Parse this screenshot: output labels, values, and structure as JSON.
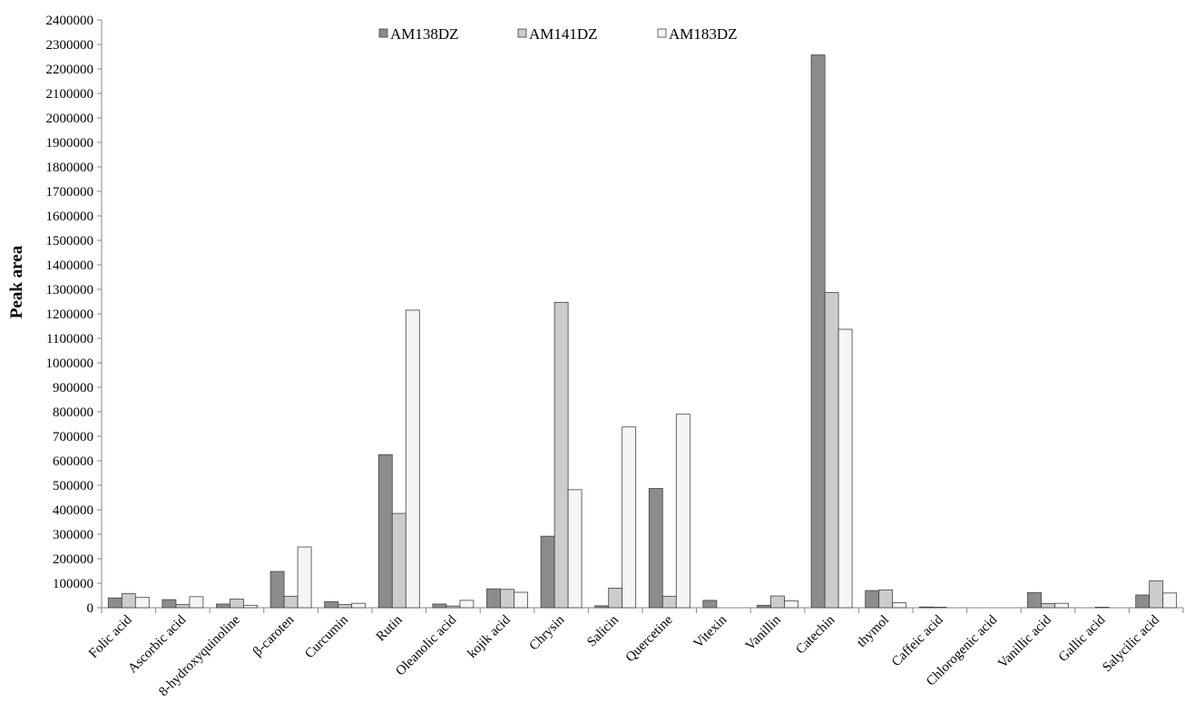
{
  "chart_data": {
    "type": "bar",
    "ylabel": "Peak area",
    "xlabel": "",
    "ylim": [
      0,
      2400000
    ],
    "y_ticks": [
      "0",
      "100000",
      "200000",
      "300000",
      "400000",
      "500000",
      "600000",
      "700000",
      "800000",
      "900000",
      "1000000",
      "1100000",
      "1200000",
      "1300000",
      "1400000",
      "1500000",
      "1600000",
      "1700000",
      "1800000",
      "1900000",
      "2000000",
      "2100000",
      "2200000",
      "2300000",
      "2400000"
    ],
    "grid": false,
    "legend_position": "top-center",
    "categories": [
      "Folic acid",
      "Ascorbic acid",
      "8-hydroxyquinoline",
      "β-caroten",
      "Curcumin",
      "Rutin",
      "Oleanolic acid",
      "kojik acid",
      "Chrysin",
      "Salicin",
      "Quercetine",
      "Vitexin",
      "Vanillin",
      "Catechin",
      "thymol",
      "Caffeic acid",
      "Chlorogenic acid",
      "Vanillic acid",
      "Gallic acid",
      "Salycilic acid"
    ],
    "series": [
      {
        "name": "AM138DZ",
        "color": "#8c8c8c",
        "values": [
          40000,
          33000,
          15000,
          148000,
          25000,
          625000,
          15000,
          77000,
          292000,
          8000,
          487000,
          30000,
          10000,
          2257000,
          70000,
          3000,
          0,
          62000,
          0,
          52000
        ]
      },
      {
        "name": "AM141DZ",
        "color": "#cccccc",
        "values": [
          57000,
          13000,
          35000,
          47000,
          13000,
          385000,
          7000,
          75000,
          1247000,
          80000,
          47000,
          0,
          48000,
          1287000,
          73000,
          2000,
          0,
          17000,
          2000,
          110000
        ]
      },
      {
        "name": "AM183DZ",
        "color": "#f5f5f5",
        "values": [
          42000,
          45000,
          10000,
          248000,
          18000,
          1215000,
          30000,
          63000,
          482000,
          738000,
          790000,
          0,
          28000,
          1137000,
          20000,
          0,
          0,
          18000,
          0,
          60000
        ]
      }
    ]
  }
}
